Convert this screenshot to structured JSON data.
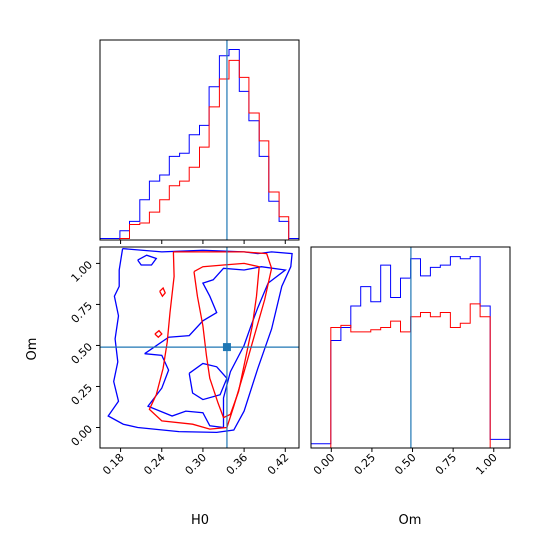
{
  "colors": {
    "blue": "#0000ff",
    "red": "#ff0000",
    "truth": "#1f77b4"
  },
  "chart_data": {
    "type": "corner",
    "parameters": [
      "H0",
      "Om"
    ],
    "truth": {
      "H0": 0.335,
      "Om": 0.49
    },
    "panels": {
      "h0_hist": {
        "type": "step-histogram",
        "xlim": [
          0.15,
          0.44
        ],
        "x_ticks": [
          0.18,
          0.24,
          0.3,
          0.36,
          0.42
        ],
        "bin_edges": [
          0.15,
          0.164,
          0.179,
          0.193,
          0.208,
          0.222,
          0.237,
          0.251,
          0.266,
          0.28,
          0.295,
          0.309,
          0.324,
          0.338,
          0.353,
          0.367,
          0.382,
          0.396,
          0.411,
          0.425,
          0.44
        ],
        "series": [
          {
            "name": "",
            "color": "blue",
            "counts": [
              1,
              1,
              6,
              12,
              26,
              38,
              42,
              54,
              56,
              68,
              74,
              99,
              119,
              123,
              96,
              77,
              54,
              25,
              12,
              1
            ]
          },
          {
            "name": "",
            "color": "red",
            "counts": [
              0,
              0,
              1,
              10,
              11,
              18,
              26,
              35,
              38,
              47,
              60,
              86,
              104,
              116,
              105,
              82,
              64,
              31,
              15,
              0
            ]
          }
        ]
      },
      "om_hist": {
        "type": "step-histogram",
        "xlim": [
          -0.125,
          1.1
        ],
        "x_ticks": [
          "0.00",
          "0.25",
          "0.50",
          "0.75",
          "1.00"
        ],
        "bin_edges": [
          -0.125,
          -0.064,
          -0.003,
          0.059,
          0.12,
          0.181,
          0.243,
          0.304,
          0.365,
          0.426,
          0.488,
          0.549,
          0.61,
          0.671,
          0.733,
          0.794,
          0.855,
          0.916,
          0.978,
          1.039,
          1.1
        ],
        "series": [
          {
            "name": "",
            "color": "blue",
            "counts": [
              2,
              2,
              50,
              56,
              66,
              75,
              68,
              85,
              70,
              79,
              88,
              80,
              84,
              85,
              89,
              88,
              89,
              66,
              4,
              4
            ]
          },
          {
            "name": "",
            "color": "red",
            "counts": [
              0,
              0,
              56,
              57,
              54,
              54,
              55,
              56,
              59,
              54,
              61,
              63,
              61,
              63,
              56,
              58,
              67,
              61,
              0,
              0
            ]
          }
        ]
      },
      "joint": {
        "type": "contour",
        "xlim": [
          0.15,
          0.44
        ],
        "ylim": [
          -0.125,
          1.1
        ],
        "x_ticks": [
          0.18,
          0.24,
          0.3,
          0.36,
          0.42
        ],
        "y_ticks": [
          "0.00",
          "0.25",
          "0.50",
          "0.75",
          "1.00"
        ],
        "xlabel": "H0",
        "ylabel": "Om",
        "contours": [
          {
            "color": "blue",
            "points": [
              [
                0.183,
                1.09
              ],
              [
                0.178,
                0.96
              ],
              [
                0.178,
                0.86
              ],
              [
                0.171,
                0.8
              ],
              [
                0.177,
                0.68
              ],
              [
                0.172,
                0.54
              ],
              [
                0.176,
                0.4
              ],
              [
                0.17,
                0.28
              ],
              [
                0.177,
                0.16
              ],
              [
                0.162,
                0.07
              ],
              [
                0.184,
                0.02
              ],
              [
                0.205,
                0.0
              ],
              [
                0.265,
                -0.025
              ],
              [
                0.32,
                -0.03
              ],
              [
                0.345,
                -0.015
              ],
              [
                0.36,
                0.1
              ],
              [
                0.38,
                0.36
              ],
              [
                0.4,
                0.6
              ],
              [
                0.415,
                0.86
              ],
              [
                0.428,
                0.98
              ],
              [
                0.43,
                1.06
              ],
              [
                0.4,
                1.07
              ],
              [
                0.38,
                1.06
              ],
              [
                0.36,
                1.07
              ],
              [
                0.3,
                1.08
              ],
              [
                0.24,
                1.07
              ],
              [
                0.183,
                1.09
              ]
            ]
          },
          {
            "color": "blue",
            "points": [
              [
                0.215,
                0.45
              ],
              [
                0.24,
                0.44
              ],
              [
                0.25,
                0.35
              ],
              [
                0.24,
                0.24
              ],
              [
                0.22,
                0.13
              ],
              [
                0.255,
                0.07
              ],
              [
                0.275,
                0.1
              ],
              [
                0.3,
                0.09
              ],
              [
                0.31,
                0.01
              ],
              [
                0.33,
                0.0
              ],
              [
                0.33,
                0.18
              ],
              [
                0.34,
                0.34
              ],
              [
                0.36,
                0.5
              ],
              [
                0.37,
                0.62
              ],
              [
                0.38,
                0.73
              ],
              [
                0.395,
                0.88
              ],
              [
                0.42,
                0.96
              ],
              [
                0.385,
                0.98
              ],
              [
                0.36,
                0.96
              ],
              [
                0.33,
                0.97
              ],
              [
                0.315,
                0.9
              ],
              [
                0.3,
                0.88
              ],
              [
                0.31,
                0.8
              ],
              [
                0.32,
                0.7
              ],
              [
                0.3,
                0.65
              ],
              [
                0.28,
                0.56
              ],
              [
                0.25,
                0.55
              ],
              [
                0.215,
                0.45
              ]
            ]
          },
          {
            "color": "blue",
            "points": [
              [
                0.28,
                0.33
              ],
              [
                0.3,
                0.39
              ],
              [
                0.32,
                0.37
              ],
              [
                0.335,
                0.3
              ],
              [
                0.325,
                0.2
              ],
              [
                0.3,
                0.17
              ],
              [
                0.285,
                0.21
              ],
              [
                0.28,
                0.33
              ]
            ]
          },
          {
            "color": "blue",
            "points": [
              [
                0.205,
                1.02
              ],
              [
                0.218,
                1.05
              ],
              [
                0.232,
                1.03
              ],
              [
                0.225,
                0.99
              ],
              [
                0.21,
                0.99
              ],
              [
                0.205,
                1.02
              ]
            ]
          },
          {
            "color": "red",
            "points": [
              [
                0.257,
                1.07
              ],
              [
                0.258,
                0.92
              ],
              [
                0.252,
                0.7
              ],
              [
                0.248,
                0.52
              ],
              [
                0.242,
                0.36
              ],
              [
                0.232,
                0.2
              ],
              [
                0.222,
                0.11
              ],
              [
                0.24,
                0.04
              ],
              [
                0.285,
                0.02
              ],
              [
                0.31,
                -0.01
              ],
              [
                0.335,
                0.0
              ],
              [
                0.345,
                0.13
              ],
              [
                0.36,
                0.34
              ],
              [
                0.375,
                0.56
              ],
              [
                0.39,
                0.78
              ],
              [
                0.4,
                0.97
              ],
              [
                0.393,
                1.06
              ],
              [
                0.36,
                1.07
              ],
              [
                0.3,
                1.07
              ],
              [
                0.257,
                1.07
              ]
            ]
          },
          {
            "color": "red",
            "points": [
              [
                0.287,
                0.95
              ],
              [
                0.292,
                0.8
              ],
              [
                0.3,
                0.62
              ],
              [
                0.305,
                0.44
              ],
              [
                0.31,
                0.3
              ],
              [
                0.322,
                0.15
              ],
              [
                0.33,
                0.06
              ],
              [
                0.34,
                0.08
              ],
              [
                0.352,
                0.22
              ],
              [
                0.362,
                0.42
              ],
              [
                0.372,
                0.62
              ],
              [
                0.378,
                0.8
              ],
              [
                0.382,
                0.98
              ],
              [
                0.36,
                1.0
              ],
              [
                0.33,
                0.99
              ],
              [
                0.3,
                0.98
              ],
              [
                0.287,
                0.95
              ]
            ]
          },
          {
            "color": "red",
            "points": [
              [
                0.237,
                0.83
              ],
              [
                0.242,
                0.85
              ],
              [
                0.245,
                0.82
              ],
              [
                0.241,
                0.8
              ],
              [
                0.237,
                0.83
              ]
            ]
          },
          {
            "color": "red",
            "points": [
              [
                0.23,
                0.57
              ],
              [
                0.236,
                0.59
              ],
              [
                0.24,
                0.57
              ],
              [
                0.235,
                0.55
              ],
              [
                0.23,
                0.57
              ]
            ]
          }
        ]
      },
      "om_hist_xlabel": "Om"
    }
  }
}
